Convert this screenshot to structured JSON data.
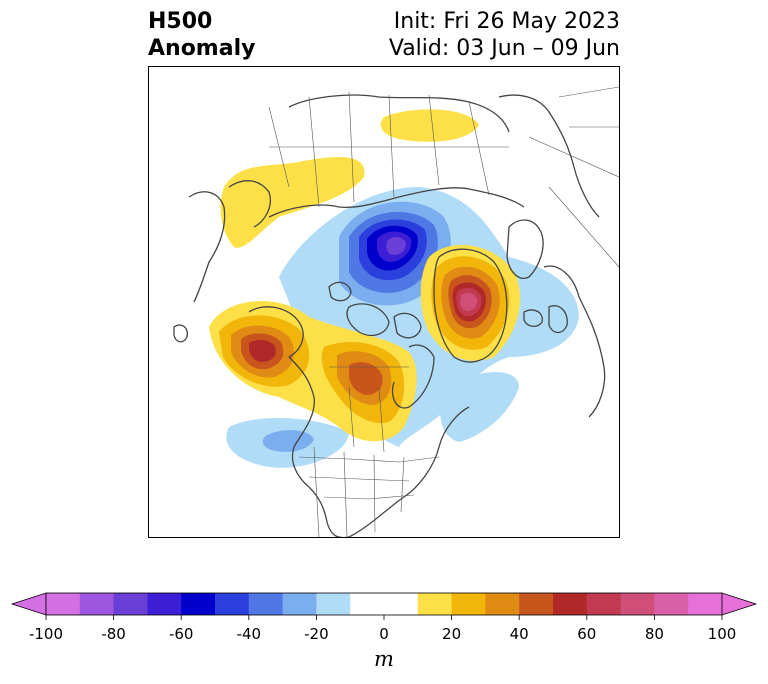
{
  "title": {
    "variable": "H500",
    "product": "Anomaly",
    "init": "Init: Fri 26 May 2023",
    "valid": "Valid: 03 Jun – 09 Jun"
  },
  "colorbar": {
    "ticks": [
      "-100",
      "-80",
      "-60",
      "-40",
      "-20",
      "0",
      "20",
      "40",
      "60",
      "80",
      "100"
    ],
    "unit": "m",
    "colors": [
      "#d46fe4",
      "#9d56e0",
      "#6a3fd8",
      "#3b1ed6",
      "#0000cc",
      "#2a3fdc",
      "#5078e4",
      "#7aaeee",
      "#b0dcf8",
      "#ffffff",
      "#ffffff",
      "#fde047",
      "#f2b50a",
      "#e08c14",
      "#c8561c",
      "#b02828",
      "#c23a50",
      "#d04e78",
      "#d960a6",
      "#e770d8"
    ]
  },
  "colors": {
    "coastline": "#444444",
    "frame": "#000000"
  }
}
